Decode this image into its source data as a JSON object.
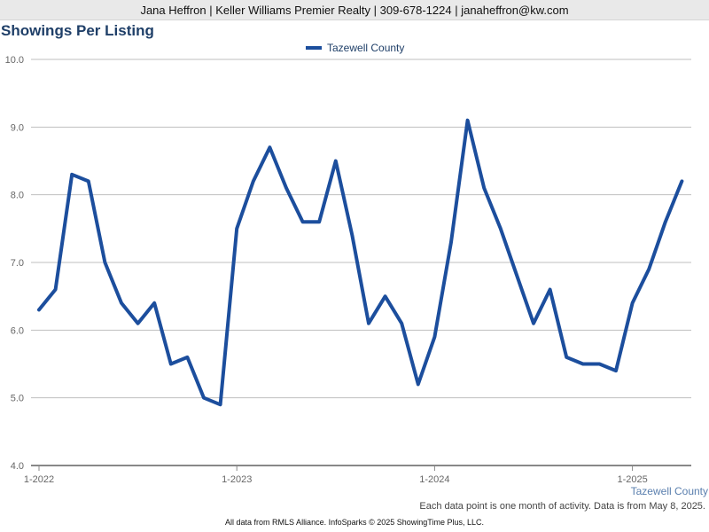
{
  "banner": "Jana Heffron | Keller Williams Premier Realty | 309-678-1224 | janaheffron@kw.com",
  "title": "Showings Per Listing",
  "series_label": "Tazewell County",
  "note": "Each data point is one month of activity. Data is from May 8, 2025.",
  "footer": "All data from RMLS Alliance. InfoSparks © 2025 ShowingTime Plus, LLC.",
  "colors": {
    "line": "#1c4e9d",
    "title": "#1f3f68",
    "grid": "#bfbfbf",
    "axis": "#888888"
  },
  "chart_data": {
    "type": "line",
    "title": "Showings Per Listing",
    "xlabel": "",
    "ylabel": "",
    "x": [
      "1-2022",
      "2-2022",
      "3-2022",
      "4-2022",
      "5-2022",
      "6-2022",
      "7-2022",
      "8-2022",
      "9-2022",
      "10-2022",
      "11-2022",
      "12-2022",
      "1-2023",
      "2-2023",
      "3-2023",
      "4-2023",
      "5-2023",
      "6-2023",
      "7-2023",
      "8-2023",
      "9-2023",
      "10-2023",
      "11-2023",
      "12-2023",
      "1-2024",
      "2-2024",
      "3-2024",
      "4-2024",
      "5-2024",
      "6-2024",
      "7-2024",
      "8-2024",
      "9-2024",
      "10-2024",
      "11-2024",
      "12-2024",
      "1-2025",
      "2-2025",
      "3-2025",
      "4-2025"
    ],
    "x_tick_labels": [
      "1-2022",
      "1-2023",
      "1-2024",
      "1-2025"
    ],
    "y_tick_labels": [
      "4.0",
      "5.0",
      "6.0",
      "7.0",
      "8.0",
      "9.0",
      "10.0"
    ],
    "ylim": [
      4.0,
      10.0
    ],
    "grid": true,
    "legend_position": "top-center",
    "series": [
      {
        "name": "Tazewell County",
        "values": [
          6.3,
          6.6,
          8.3,
          8.2,
          7.0,
          6.4,
          6.1,
          6.4,
          5.5,
          5.6,
          5.0,
          4.9,
          7.5,
          8.2,
          8.7,
          8.1,
          7.6,
          7.6,
          8.5,
          7.4,
          6.1,
          6.5,
          6.1,
          5.2,
          5.9,
          7.3,
          9.1,
          8.1,
          7.5,
          6.8,
          6.1,
          6.6,
          5.6,
          5.5,
          5.5,
          5.4,
          6.4,
          6.9,
          7.6,
          8.2
        ]
      }
    ]
  }
}
